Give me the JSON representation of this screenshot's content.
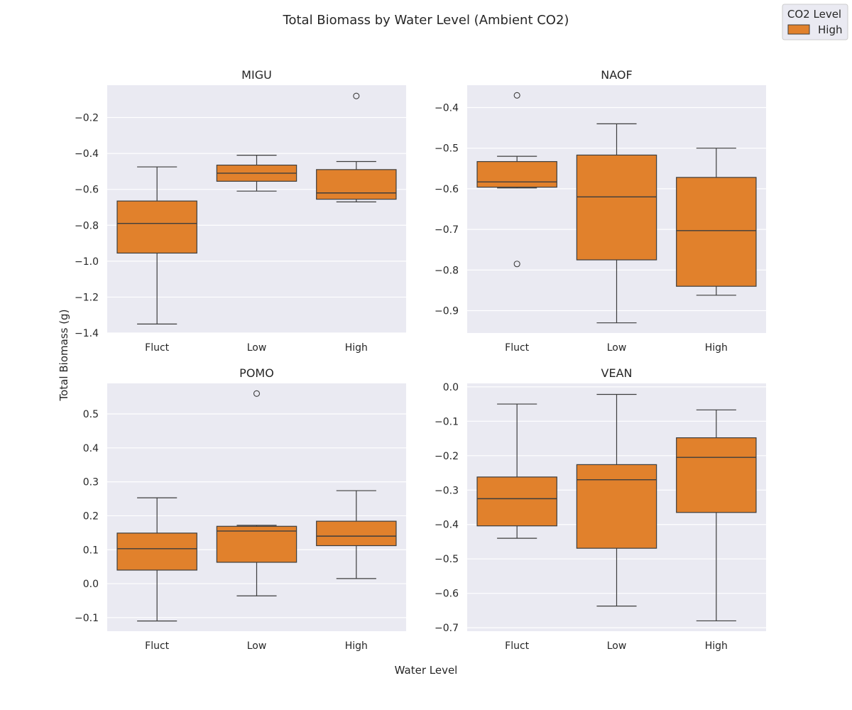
{
  "chart_data": {
    "type": "box",
    "title": "Total Biomass by Water Level (Ambient CO2)",
    "xlabel": "Water Level",
    "ylabel": "Total Biomass (g)",
    "categories": [
      "Fluct",
      "Low",
      "High"
    ],
    "legend": {
      "title": "CO2 Level",
      "entries": [
        {
          "name": "High",
          "color": "#e1812c"
        }
      ],
      "placement": "top-right"
    },
    "colors": {
      "box_fill": "#e1812c",
      "plot_bg": "#eaeaf2",
      "grid": "#ffffff",
      "line": "#3d3d3d"
    },
    "grid": true,
    "panels": [
      {
        "title": "MIGU",
        "ylim": [
          -1.4,
          -0.02
        ],
        "yticks": [
          -1.4,
          -1.2,
          -1.0,
          -0.8,
          -0.6,
          -0.4,
          -0.2
        ],
        "ytick_labels": [
          "−1.4",
          "−1.2",
          "−1.0",
          "−0.8",
          "−0.6",
          "−0.4",
          "−0.2"
        ],
        "boxes": [
          {
            "category": "Fluct",
            "whislo": -1.35,
            "q1": -0.955,
            "med": -0.79,
            "q3": -0.665,
            "whishi": -0.475,
            "fliers": []
          },
          {
            "category": "Low",
            "whislo": -0.61,
            "q1": -0.555,
            "med": -0.51,
            "q3": -0.465,
            "whishi": -0.41,
            "fliers": []
          },
          {
            "category": "High",
            "whislo": -0.67,
            "q1": -0.655,
            "med": -0.62,
            "q3": -0.49,
            "whishi": -0.445,
            "fliers": [
              -0.08
            ]
          }
        ]
      },
      {
        "title": "NAOF",
        "ylim": [
          -0.955,
          -0.345
        ],
        "yticks": [
          -0.9,
          -0.8,
          -0.7,
          -0.6,
          -0.5,
          -0.4
        ],
        "ytick_labels": [
          "−0.9",
          "−0.8",
          "−0.7",
          "−0.6",
          "−0.5",
          "−0.4"
        ],
        "boxes": [
          {
            "category": "Fluct",
            "whislo": -0.598,
            "q1": -0.596,
            "med": -0.583,
            "q3": -0.533,
            "whishi": -0.52,
            "fliers": [
              -0.37,
              -0.785
            ]
          },
          {
            "category": "Low",
            "whislo": -0.93,
            "q1": -0.775,
            "med": -0.62,
            "q3": -0.517,
            "whishi": -0.44,
            "fliers": []
          },
          {
            "category": "High",
            "whislo": -0.862,
            "q1": -0.84,
            "med": -0.703,
            "q3": -0.572,
            "whishi": -0.5,
            "fliers": []
          }
        ]
      },
      {
        "title": "POMO",
        "ylim": [
          -0.14,
          0.59
        ],
        "yticks": [
          -0.1,
          0.0,
          0.1,
          0.2,
          0.3,
          0.4,
          0.5
        ],
        "ytick_labels": [
          "−0.1",
          "0.0",
          "0.1",
          "0.2",
          "0.3",
          "0.4",
          "0.5"
        ],
        "boxes": [
          {
            "category": "Fluct",
            "whislo": -0.11,
            "q1": 0.04,
            "med": 0.103,
            "q3": 0.149,
            "whishi": 0.253,
            "fliers": []
          },
          {
            "category": "Low",
            "whislo": -0.036,
            "q1": 0.063,
            "med": 0.155,
            "q3": 0.169,
            "whishi": 0.172,
            "fliers": [
              0.56
            ]
          },
          {
            "category": "High",
            "whislo": 0.015,
            "q1": 0.112,
            "med": 0.14,
            "q3": 0.184,
            "whishi": 0.274,
            "fliers": []
          }
        ]
      },
      {
        "title": "VEAN",
        "ylim": [
          -0.71,
          0.01
        ],
        "yticks": [
          -0.7,
          -0.6,
          -0.5,
          -0.4,
          -0.3,
          -0.2,
          -0.1,
          0.0
        ],
        "ytick_labels": [
          "−0.7",
          "−0.6",
          "−0.5",
          "−0.4",
          "−0.3",
          "−0.2",
          "−0.1",
          "0.0"
        ],
        "boxes": [
          {
            "category": "Fluct",
            "whislo": -0.44,
            "q1": -0.404,
            "med": -0.325,
            "q3": -0.262,
            "whishi": -0.05,
            "fliers": []
          },
          {
            "category": "Low",
            "whislo": -0.637,
            "q1": -0.469,
            "med": -0.27,
            "q3": -0.226,
            "whishi": -0.022,
            "fliers": []
          },
          {
            "category": "High",
            "whislo": -0.68,
            "q1": -0.365,
            "med": -0.205,
            "q3": -0.148,
            "whishi": -0.067,
            "fliers": []
          }
        ]
      }
    ]
  }
}
